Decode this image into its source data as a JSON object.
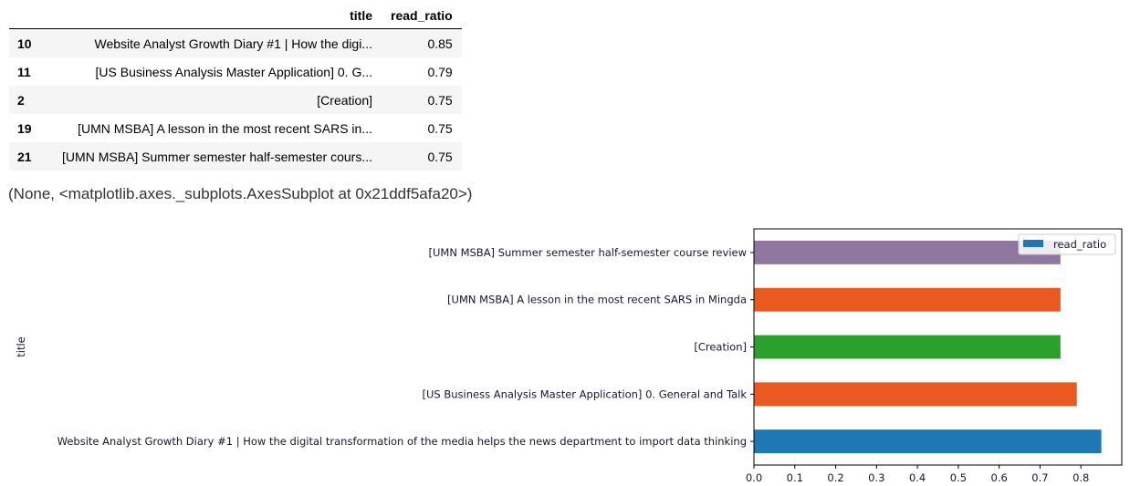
{
  "table": {
    "columns": [
      "",
      "title",
      "read_ratio"
    ],
    "rows": [
      {
        "index": "10",
        "title": "Website Analyst Growth Diary #1 | How the digi...",
        "read_ratio": "0.85"
      },
      {
        "index": "11",
        "title": "[US Business Analysis Master Application] 0. G...",
        "read_ratio": "0.79"
      },
      {
        "index": "2",
        "title": "[Creation]",
        "read_ratio": "0.75"
      },
      {
        "index": "19",
        "title": "[UMN MSBA] A lesson in the most recent SARS in...",
        "read_ratio": "0.75"
      },
      {
        "index": "21",
        "title": "[UMN MSBA] Summer semester half-semester cours...",
        "read_ratio": "0.75"
      }
    ]
  },
  "output_text": "(None, <matplotlib.axes._subplots.AxesSubplot at 0x21ddf5afa20>)",
  "chart_data": {
    "type": "bar",
    "orientation": "horizontal",
    "ylabel": "title",
    "xlabel": "",
    "xlim": [
      0,
      0.9
    ],
    "xticks": [
      "0.0",
      "0.1",
      "0.2",
      "0.3",
      "0.4",
      "0.5",
      "0.6",
      "0.7",
      "0.8"
    ],
    "categories": [
      "Website Analyst Growth Diary #1 | How the digital transformation of the media helps the news department to import data thinking",
      "[US Business Analysis Master Application] 0. General and Talk",
      "[Creation]",
      "[UMN MSBA] A lesson in the most recent SARS in Mingda",
      "[UMN MSBA] Summer semester half-semester course review"
    ],
    "series": [
      {
        "name": "read_ratio",
        "values": [
          0.85,
          0.79,
          0.75,
          0.75,
          0.75
        ]
      }
    ],
    "colors": [
      "#1f77b4",
      "#ea5920",
      "#2ca02c",
      "#ea5920",
      "#9077a0"
    ],
    "legend": {
      "label": "read_ratio",
      "color": "#1f77b4",
      "position": "top-right"
    },
    "grid": false
  }
}
